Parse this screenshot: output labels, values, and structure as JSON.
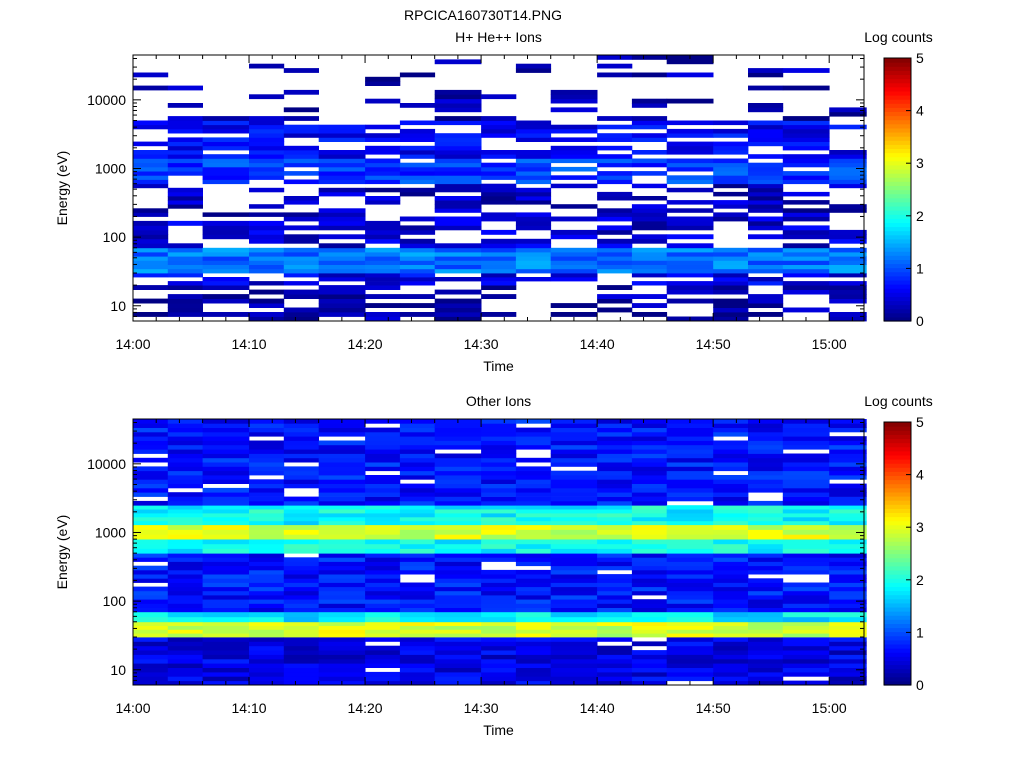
{
  "figure_title": "RPCICA160730T14.PNG",
  "chart_data": [
    {
      "type": "heatmap",
      "title": "H+ He++ Ions",
      "xlabel": "Time",
      "ylabel": "Energy (eV)",
      "x_scale": "time",
      "y_scale": "log",
      "xlim": [
        "14:00",
        "15:03"
      ],
      "ylim": [
        6,
        45000
      ],
      "x_ticks": [
        "14:00",
        "14:10",
        "14:20",
        "14:30",
        "14:40",
        "14:50",
        "15:00"
      ],
      "y_ticks": [
        "10",
        "100",
        "1000",
        "10000"
      ],
      "grid": false,
      "colorbar": {
        "label": "Log counts",
        "range": [
          0,
          5
        ],
        "ticks": [
          "0",
          "1",
          "2",
          "3",
          "4",
          "5"
        ],
        "colormap": "jet"
      },
      "time_bins": [
        "14:00",
        "14:03",
        "14:06",
        "14:10",
        "14:13",
        "14:16",
        "14:20",
        "14:23",
        "14:26",
        "14:30",
        "14:33",
        "14:36",
        "14:40",
        "14:43",
        "14:46",
        "14:50",
        "14:53",
        "14:56",
        "15:00"
      ],
      "energy_bands": [
        {
          "range_eV": [
            6,
            20
          ],
          "log_counts": 0.2,
          "coverage": 0.55
        },
        {
          "range_eV": [
            20,
            30
          ],
          "log_counts": 0.5,
          "coverage": 0.6
        },
        {
          "range_eV": [
            30,
            70
          ],
          "log_counts": 1.2,
          "coverage": 1.0
        },
        {
          "range_eV": [
            70,
            200
          ],
          "log_counts": 0.4,
          "coverage": 0.6
        },
        {
          "range_eV": [
            200,
            600
          ],
          "log_counts": 0.3,
          "coverage": 0.5
        },
        {
          "range_eV": [
            600,
            1400
          ],
          "log_counts": 0.9,
          "coverage": 0.85
        },
        {
          "range_eV": [
            1400,
            5000
          ],
          "log_counts": 0.6,
          "coverage": 0.7
        },
        {
          "range_eV": [
            5000,
            45000
          ],
          "log_counts": 0.2,
          "coverage": 0.25
        }
      ]
    },
    {
      "type": "heatmap",
      "title": "Other Ions",
      "xlabel": "Time",
      "ylabel": "Energy (eV)",
      "x_scale": "time",
      "y_scale": "log",
      "xlim": [
        "14:00",
        "15:03"
      ],
      "ylim": [
        6,
        45000
      ],
      "x_ticks": [
        "14:00",
        "14:10",
        "14:20",
        "14:30",
        "14:40",
        "14:50",
        "15:00"
      ],
      "y_ticks": [
        "10",
        "100",
        "1000",
        "10000"
      ],
      "grid": false,
      "colorbar": {
        "label": "Log counts",
        "range": [
          0,
          5
        ],
        "ticks": [
          "0",
          "1",
          "2",
          "3",
          "4",
          "5"
        ],
        "colormap": "jet"
      },
      "time_bins": [
        "14:00",
        "14:03",
        "14:06",
        "14:10",
        "14:13",
        "14:16",
        "14:20",
        "14:23",
        "14:26",
        "14:30",
        "14:33",
        "14:36",
        "14:40",
        "14:43",
        "14:46",
        "14:50",
        "14:53",
        "14:56",
        "15:00"
      ],
      "energy_bands": [
        {
          "range_eV": [
            6,
            30
          ],
          "log_counts": 0.5,
          "coverage": 0.95
        },
        {
          "range_eV": [
            30,
            50
          ],
          "log_counts": 2.9,
          "coverage": 1.0
        },
        {
          "range_eV": [
            50,
            70
          ],
          "log_counts": 1.8,
          "coverage": 1.0
        },
        {
          "range_eV": [
            70,
            500
          ],
          "log_counts": 0.7,
          "coverage": 0.95
        },
        {
          "range_eV": [
            500,
            800
          ],
          "log_counts": 1.9,
          "coverage": 1.0
        },
        {
          "range_eV": [
            800,
            1300
          ],
          "log_counts": 2.9,
          "coverage": 1.0
        },
        {
          "range_eV": [
            1300,
            2500
          ],
          "log_counts": 1.9,
          "coverage": 1.0
        },
        {
          "range_eV": [
            2500,
            45000
          ],
          "log_counts": 0.7,
          "coverage": 0.9
        }
      ]
    }
  ]
}
